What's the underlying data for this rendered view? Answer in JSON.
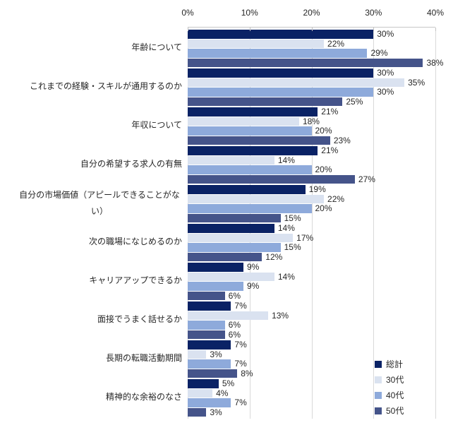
{
  "chart_data": {
    "type": "bar",
    "orientation": "horizontal",
    "title": "",
    "xlabel": "",
    "ylabel": "",
    "x_axis": {
      "position": "top",
      "min": 0,
      "max": 40,
      "ticks": [
        "0%",
        "10%",
        "20%",
        "30%",
        "40%"
      ],
      "tick_values": [
        0,
        10,
        20,
        30,
        40
      ]
    },
    "grid": true,
    "legend_position": "bottom-right",
    "value_label_suffix": "%",
    "categories": [
      "年齢について",
      "これまでの経験・スキルが通用するのか",
      "年収について",
      "自分の希望する求人の有無",
      "自分の市場価値（アピールできることがない）",
      "次の職場になじめるのか",
      "キャリアアップできるか",
      "面接でうまく話せるか",
      "長期の転職活動期間",
      "精神的な余裕のなさ"
    ],
    "series": [
      {
        "name": "総計",
        "color": "#0a2265",
        "values": [
          30,
          30,
          21,
          21,
          19,
          14,
          9,
          7,
          7,
          5
        ]
      },
      {
        "name": "30代",
        "color": "#dae2f0",
        "values": [
          22,
          35,
          18,
          14,
          22,
          17,
          14,
          13,
          3,
          4
        ]
      },
      {
        "name": "40代",
        "color": "#8eaadb",
        "values": [
          29,
          30,
          20,
          20,
          20,
          15,
          9,
          6,
          7,
          7
        ]
      },
      {
        "name": "50代",
        "color": "#45548a",
        "values": [
          38,
          25,
          23,
          27,
          15,
          12,
          6,
          6,
          8,
          3
        ]
      }
    ],
    "colors": {
      "grid": "#d9d9d9",
      "axis_line": "#c6c6c6",
      "text": "#262626"
    }
  }
}
